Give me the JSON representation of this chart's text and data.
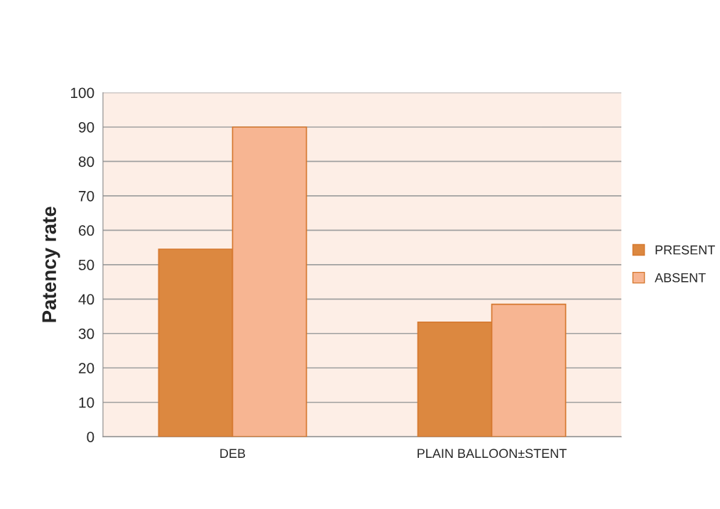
{
  "chart_data": {
    "type": "bar",
    "ylabel": "Patency rate",
    "categories": [
      "DEB",
      "PLAIN BALLOON±STENT"
    ],
    "series": [
      {
        "name": "PRESENT",
        "color": "#dc8840",
        "values": [
          54.5,
          33.3
        ]
      },
      {
        "name": "ABSENT",
        "color": "#f7b592",
        "values": [
          90,
          38.5
        ]
      }
    ],
    "ylim": [
      0,
      100
    ],
    "yticks": [
      0,
      10,
      20,
      30,
      40,
      50,
      60,
      70,
      80,
      90,
      100
    ],
    "grid": "y",
    "legend": "right"
  }
}
